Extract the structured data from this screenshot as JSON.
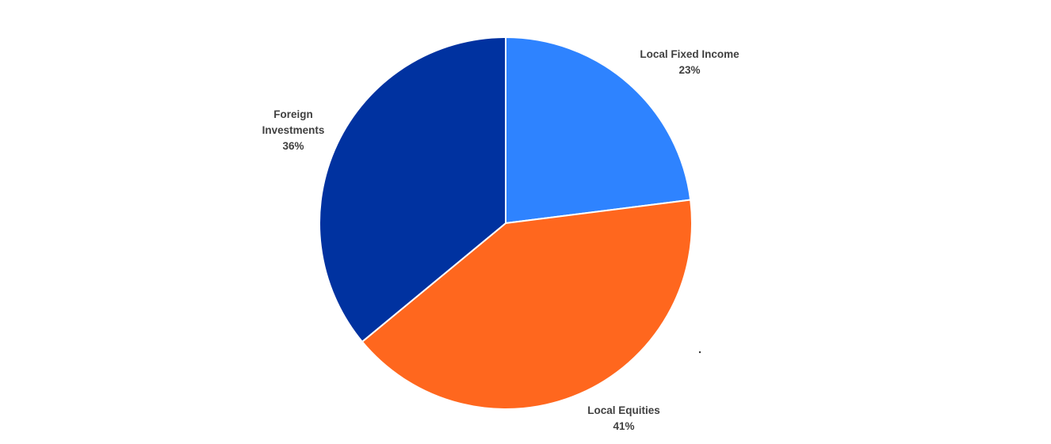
{
  "chart_data": {
    "type": "pie",
    "title": "",
    "slices": [
      {
        "label": "Local Fixed Income",
        "value": 23,
        "display": "23%",
        "color": "#2e83ff"
      },
      {
        "label": "Local Equities",
        "value": 41,
        "display": "41%",
        "color": "#ff671e"
      },
      {
        "label": "Foreign Investments",
        "value": 36,
        "display": "36%",
        "color": "#0032a0"
      }
    ],
    "start_angle": "12 o'clock",
    "direction": "clockwise",
    "slice_border_color": "#ffffff",
    "legend": "none",
    "label_placement": "outside"
  }
}
